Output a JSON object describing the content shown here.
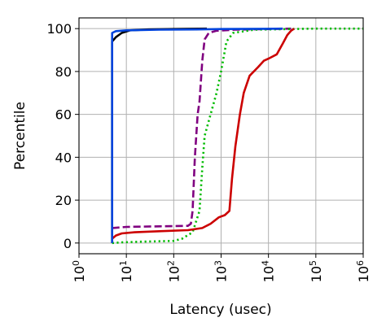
{
  "chart_data": {
    "type": "line",
    "title": "",
    "xlabel": "Latency (usec)",
    "ylabel": "Percentile",
    "xscale": "log",
    "xlim": [
      1,
      1000000
    ],
    "ylim": [
      -5,
      105
    ],
    "grid": true,
    "legend": "none",
    "x_ticks": [
      {
        "value": 1,
        "base": "10",
        "exp": "0"
      },
      {
        "value": 10,
        "base": "10",
        "exp": "1"
      },
      {
        "value": 100,
        "base": "10",
        "exp": "2"
      },
      {
        "value": 1000,
        "base": "10",
        "exp": "3"
      },
      {
        "value": 10000,
        "base": "10",
        "exp": "4"
      },
      {
        "value": 100000,
        "base": "10",
        "exp": "5"
      },
      {
        "value": 1000000,
        "base": "10",
        "exp": "6"
      }
    ],
    "y_ticks": [
      {
        "value": 0,
        "label": "0"
      },
      {
        "value": 20,
        "label": "20"
      },
      {
        "value": 40,
        "label": "40"
      },
      {
        "value": 60,
        "label": "60"
      },
      {
        "value": 80,
        "label": "80"
      },
      {
        "value": 100,
        "label": "100"
      }
    ],
    "series": [
      {
        "color": "#000000",
        "dash": "solid",
        "points": [
          [
            5,
            0
          ],
          [
            5,
            94
          ],
          [
            6,
            96
          ],
          [
            8,
            98
          ],
          [
            12,
            99.2
          ],
          [
            30,
            99.6
          ],
          [
            100,
            99.8
          ],
          [
            500,
            100
          ]
        ]
      },
      {
        "color": "#800080",
        "dash": "dashed",
        "points": [
          [
            5,
            7
          ],
          [
            10,
            7.5
          ],
          [
            50,
            7.8
          ],
          [
            200,
            8
          ],
          [
            230,
            9
          ],
          [
            250,
            15
          ],
          [
            280,
            40
          ],
          [
            320,
            60
          ],
          [
            350,
            66
          ],
          [
            400,
            85
          ],
          [
            450,
            95
          ],
          [
            550,
            98
          ],
          [
            800,
            99
          ],
          [
            2000,
            99.5
          ],
          [
            10000,
            99.8
          ],
          [
            30000,
            100
          ]
        ]
      },
      {
        "color": "#00bb00",
        "dash": "dotted",
        "points": [
          [
            5,
            0
          ],
          [
            8,
            0.3
          ],
          [
            20,
            0.6
          ],
          [
            100,
            1
          ],
          [
            150,
            2
          ],
          [
            250,
            5
          ],
          [
            350,
            15
          ],
          [
            400,
            35
          ],
          [
            450,
            50
          ],
          [
            600,
            60
          ],
          [
            800,
            70
          ],
          [
            1000,
            80
          ],
          [
            1300,
            94
          ],
          [
            1800,
            98
          ],
          [
            5000,
            99.5
          ],
          [
            30000,
            99.8
          ],
          [
            100000,
            100
          ],
          [
            1000000,
            100
          ]
        ]
      },
      {
        "color": "#cc0000",
        "dash": "solid",
        "points": [
          [
            5,
            2
          ],
          [
            6,
            3.5
          ],
          [
            8,
            4.5
          ],
          [
            15,
            5
          ],
          [
            50,
            5.5
          ],
          [
            200,
            6
          ],
          [
            400,
            7
          ],
          [
            600,
            9
          ],
          [
            900,
            12
          ],
          [
            1200,
            13
          ],
          [
            1500,
            15
          ],
          [
            1700,
            30
          ],
          [
            2000,
            45
          ],
          [
            2500,
            60
          ],
          [
            3000,
            70
          ],
          [
            4000,
            78
          ],
          [
            6000,
            82
          ],
          [
            8000,
            85
          ],
          [
            10000,
            86
          ],
          [
            15000,
            88
          ],
          [
            20000,
            93
          ],
          [
            25000,
            97
          ],
          [
            30000,
            99
          ],
          [
            35000,
            100
          ]
        ]
      },
      {
        "color": "#0044dd",
        "dash": "solid",
        "points": [
          [
            5,
            0
          ],
          [
            5,
            98
          ],
          [
            6,
            98.8
          ],
          [
            10,
            99.2
          ],
          [
            50,
            99.5
          ],
          [
            300,
            99.6
          ],
          [
            1000,
            99.8
          ],
          [
            10000,
            99.9
          ],
          [
            20000,
            100
          ]
        ]
      }
    ]
  }
}
